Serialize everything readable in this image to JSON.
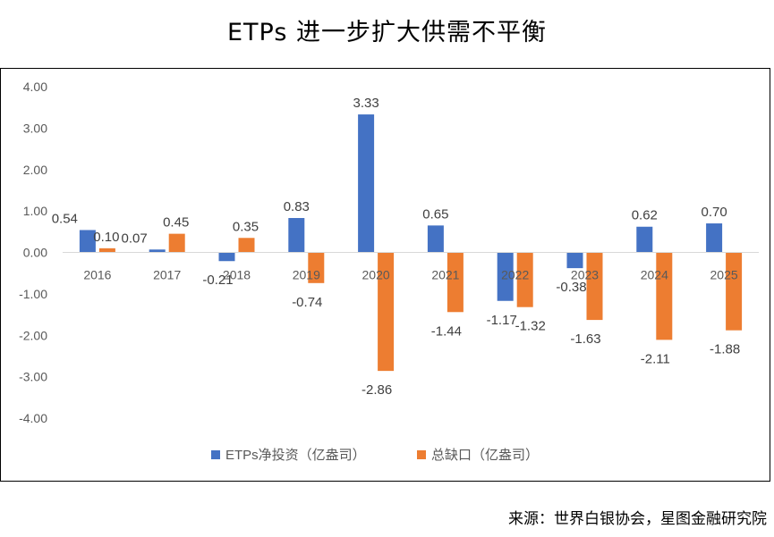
{
  "chart_data": {
    "type": "bar",
    "title": "ETPs 进一步扩大供需不平衡",
    "source": "来源：世界白银协会，星图金融研究院",
    "categories": [
      "2016",
      "2017",
      "2018",
      "2019",
      "2020",
      "2021",
      "2022",
      "2023",
      "2024",
      "2025"
    ],
    "series": [
      {
        "name": "ETPs净投资（亿盎司）",
        "color": "#4472C4",
        "values": [
          0.54,
          0.07,
          -0.21,
          0.83,
          3.33,
          0.65,
          -1.17,
          -0.38,
          0.62,
          0.7
        ],
        "labels": [
          "0.54",
          "0.07",
          "-0.21",
          "0.83",
          "3.33",
          "0.65",
          "-1.17",
          "-0.38",
          "0.62",
          "0.70"
        ]
      },
      {
        "name": "总缺口（亿盎司）",
        "color": "#ED7D31",
        "values": [
          0.1,
          0.45,
          0.35,
          -0.74,
          -2.86,
          -1.44,
          -1.32,
          -1.63,
          -2.11,
          -1.88
        ],
        "labels": [
          "0.10",
          "0.45",
          "0.35",
          "-0.74",
          "-2.86",
          "-1.44",
          "-1.32",
          "-1.63",
          "-2.11",
          "-1.88"
        ]
      }
    ],
    "yticks": [
      "4.00",
      "3.00",
      "2.00",
      "1.00",
      "0.00",
      "-1.00",
      "-2.00",
      "-3.00",
      "-4.00"
    ],
    "ylim": [
      -4,
      4
    ],
    "grid": false,
    "legend": "bottom"
  }
}
